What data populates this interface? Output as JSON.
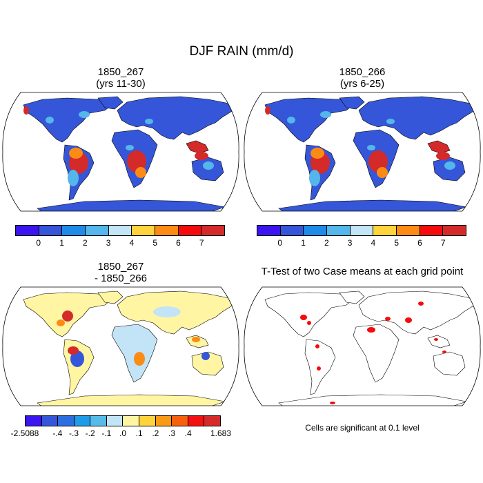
{
  "main_title": "DJF RAIN (mm/d)",
  "panels": {
    "top_left": {
      "title_line1": "1850_267",
      "title_line2": "(yrs 11-30)"
    },
    "top_right": {
      "title_line1": "1850_266",
      "title_line2": "(yrs 6-25)"
    },
    "bottom_left": {
      "title_line1": "1850_267",
      "title_line2": "- 1850_266"
    },
    "bottom_right": {
      "title": "T-Test of two Case means at each grid point"
    }
  },
  "colorbar_rain": {
    "colors": [
      "#3b14f0",
      "#3556d8",
      "#1f8be8",
      "#54b6ea",
      "#c3e5f5",
      "#fed33c",
      "#fb8b14",
      "#f50b0b",
      "#d42a2a"
    ],
    "labels": [
      "0",
      "1",
      "2",
      "3",
      "4",
      "5",
      "6",
      "7"
    ]
  },
  "colorbar_diff": {
    "colors": [
      "#3b14f0",
      "#3556d8",
      "#2a6ee0",
      "#1f9be8",
      "#57bbea",
      "#c2e4f6",
      "#fff5a3",
      "#fed33c",
      "#fb9a14",
      "#f7600c",
      "#f21212",
      "#d42a2a"
    ],
    "labels": [
      "-2.5088",
      "-.4",
      "-.3",
      "-.2",
      "-.1",
      ".0",
      ".1",
      ".2",
      ".3",
      ".4",
      "1.683"
    ]
  },
  "footnote": "Cells are significant at 0.1 level",
  "map_colors": {
    "ocean": "#ffffff",
    "land_low": "#3556d8",
    "land_mid": "#54b6ea",
    "land_high": "#d42a2a",
    "land_orange": "#fb8b14",
    "land_yellow": "#fed33c",
    "diff_neutral": "#fff5a3",
    "diff_blue": "#c2e4f6",
    "sig": "#f50b0b"
  }
}
